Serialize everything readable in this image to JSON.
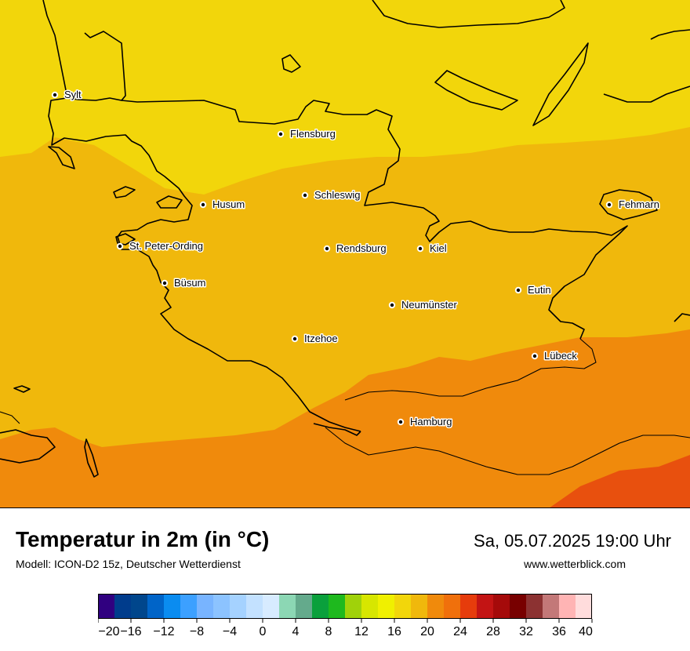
{
  "map": {
    "regions": [
      {
        "name": "cooler-north",
        "color": "#f2d60b",
        "value_c": 17
      },
      {
        "name": "central",
        "color": "#f0b80c",
        "value_c": 19
      },
      {
        "name": "south",
        "color": "#f08a0c",
        "value_c": 21
      },
      {
        "name": "southeast-warm",
        "color": "#e8500e",
        "value_c": 23
      }
    ],
    "cities": [
      {
        "name": "Sylt"
      },
      {
        "name": "Flensburg"
      },
      {
        "name": "Schleswig"
      },
      {
        "name": "Husum"
      },
      {
        "name": "Fehmarn"
      },
      {
        "name": "St. Peter-Ording"
      },
      {
        "name": "Rendsburg"
      },
      {
        "name": "Kiel"
      },
      {
        "name": "Büsum"
      },
      {
        "name": "Eutin"
      },
      {
        "name": "Neumünster"
      },
      {
        "name": "Itzehoe"
      },
      {
        "name": "Lübeck"
      },
      {
        "name": "Hamburg"
      }
    ]
  },
  "footer": {
    "title": "Temperatur in 2m (in °C)",
    "subtitle": "Modell: ICON-D2 15z, Deutscher Wetterdienst",
    "datetime": "Sa, 05.07.2025 19:00 Uhr",
    "website": "www.wetterblick.com"
  },
  "legend": {
    "unit": "°C",
    "colors": [
      "#300080",
      "#003c8c",
      "#00468c",
      "#0064c8",
      "#0a8cf0",
      "#3ca0ff",
      "#78b4ff",
      "#8cc3ff",
      "#a5d2ff",
      "#c3e1ff",
      "#d7ebff",
      "#8cd7b4",
      "#64aa8c",
      "#0aa03c",
      "#1eb91e",
      "#a0d20a",
      "#d7e600",
      "#f0f000",
      "#f2d60b",
      "#f0b80c",
      "#f08a0c",
      "#f0700c",
      "#e63c0c",
      "#c31414",
      "#a50a0a",
      "#780000",
      "#8c3232",
      "#c37878",
      "#ffb4b4",
      "#ffdcdc"
    ],
    "tick_labels": [
      "−20",
      "−16",
      "−12",
      "−8",
      "−4",
      "0",
      "4",
      "8",
      "12",
      "16",
      "20",
      "24",
      "28",
      "32",
      "36",
      "40"
    ]
  }
}
